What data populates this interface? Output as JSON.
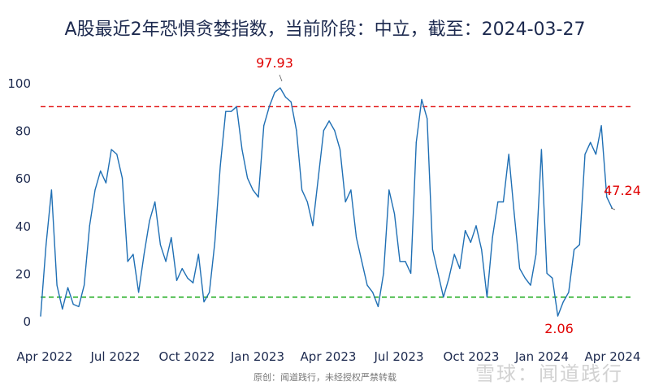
{
  "chart_data": {
    "type": "line",
    "title": "A股最近2年恐惧贪婪指数，当前阶段：中立，截至：2024-03-27",
    "xlabel": "",
    "ylabel": "",
    "ylim": [
      0,
      100
    ],
    "yticks": [
      "0",
      "20",
      "40",
      "60",
      "80",
      "100"
    ],
    "xticks": [
      "Apr 2022",
      "Jul 2022",
      "Oct 2022",
      "Jan 2023",
      "Apr 2023",
      "Jul 2023",
      "Oct 2023",
      "Jan 2024",
      "Apr 2024"
    ],
    "x_start_date": "2022-03-28",
    "x_step_days": 7,
    "series": [
      {
        "name": "恐惧贪婪指数",
        "color": "#1f6fb4",
        "values": [
          2,
          32,
          55,
          15,
          5,
          14,
          7,
          6,
          15,
          40,
          55,
          63,
          58,
          72,
          70,
          60,
          25,
          28,
          12,
          28,
          42,
          50,
          32,
          25,
          35,
          17,
          22,
          18,
          16,
          28,
          8,
          12,
          33,
          65,
          88,
          88,
          90,
          72,
          60,
          55,
          52,
          82,
          90,
          96,
          97.93,
          94,
          92,
          80,
          55,
          50,
          40,
          60,
          80,
          84,
          80,
          72,
          50,
          55,
          35,
          25,
          15,
          12,
          6,
          20,
          55,
          45,
          25,
          25,
          20,
          75,
          93,
          85,
          30,
          20,
          10,
          18,
          28,
          22,
          38,
          33,
          40,
          30,
          10,
          35,
          50,
          50,
          70,
          45,
          22,
          18,
          15,
          28,
          72,
          20,
          18,
          2.06,
          8,
          12,
          30,
          32,
          70,
          75,
          70,
          82,
          52,
          47.24
        ]
      }
    ],
    "reference_lines": [
      {
        "value": 90,
        "color": "#e00000",
        "style": "dashed"
      },
      {
        "value": 10,
        "color": "#00a000",
        "style": "dashed"
      }
    ],
    "annotations": [
      {
        "text": "97.93",
        "value": 97.93
      },
      {
        "text": "2.06",
        "value": 2.06
      },
      {
        "text": "47.24",
        "value": 47.24
      }
    ],
    "grid": false,
    "legend": "none"
  },
  "footer": {
    "credit": "原创：闻道践行，未经授权严禁转载",
    "watermark": "雪球：闻道践行"
  }
}
